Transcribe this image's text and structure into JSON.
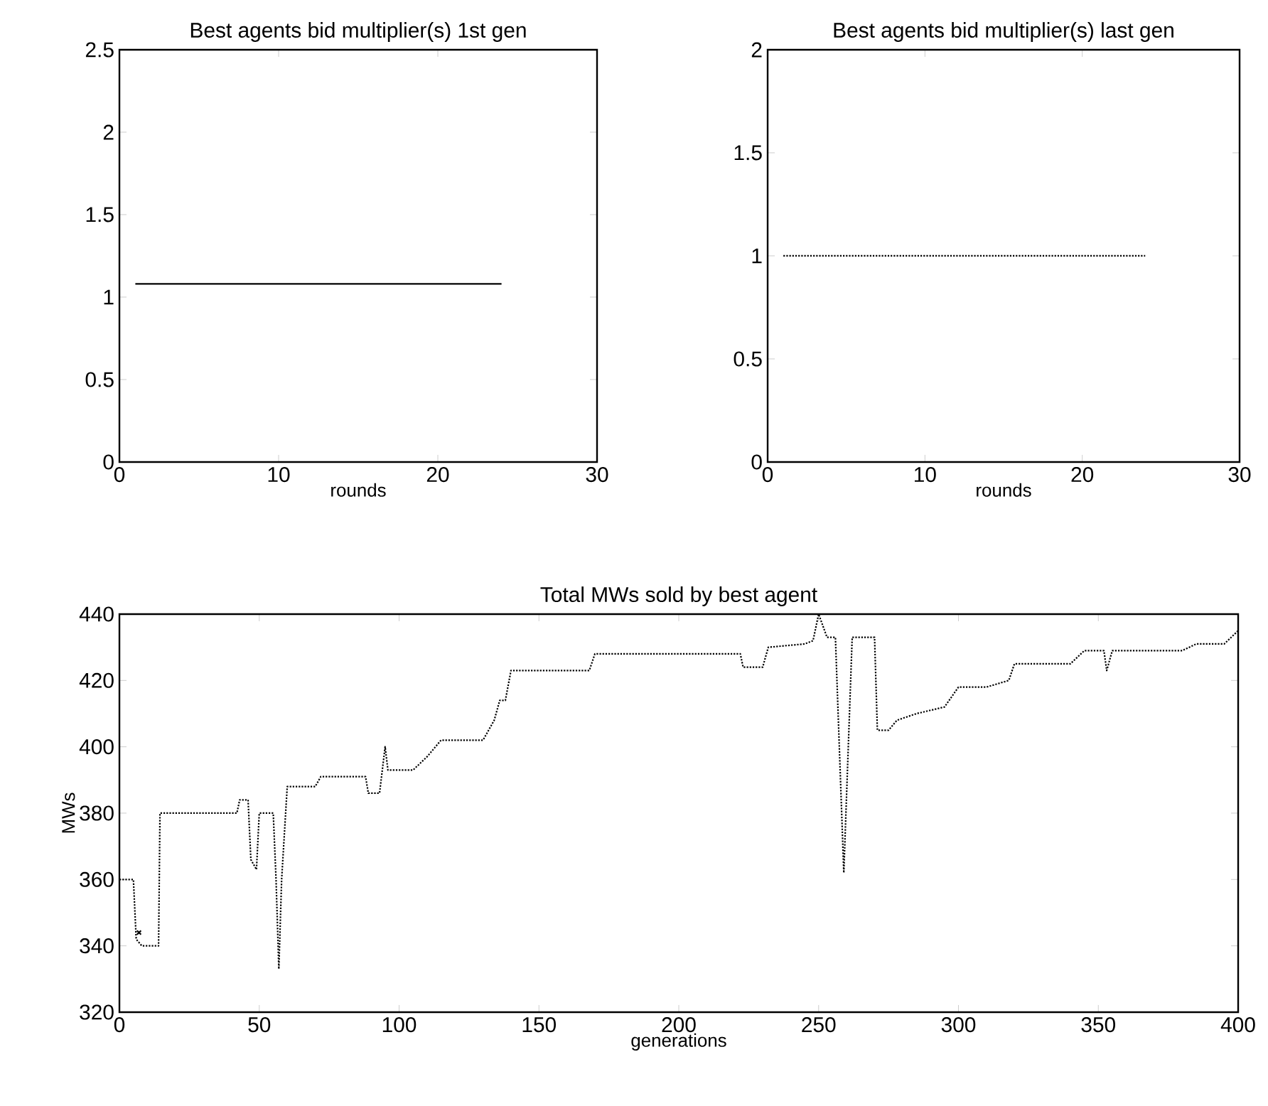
{
  "chart_data": [
    {
      "type": "line",
      "title": "Best agents bid multiplier(s) 1st gen",
      "xlabel": "rounds",
      "xlim": [
        0,
        30
      ],
      "ylim": [
        0,
        2.5
      ],
      "xticks": [
        0,
        10,
        20,
        30
      ],
      "yticks": [
        0,
        0.5,
        1,
        1.5,
        2,
        2.5
      ],
      "grid": false,
      "marker": "none",
      "line_style": "solid",
      "series": [
        {
          "color": "#000000",
          "x": [
            1,
            24
          ],
          "values": [
            1.08,
            1.08
          ]
        }
      ]
    },
    {
      "type": "line",
      "title": "Best agents bid multiplier(s) last gen",
      "xlabel": "rounds",
      "xlim": [
        0,
        30
      ],
      "ylim": [
        0,
        2
      ],
      "xticks": [
        0,
        10,
        20,
        30
      ],
      "yticks": [
        0,
        0.5,
        1,
        1.5,
        2
      ],
      "grid": false,
      "marker": "none",
      "line_style": "dotted",
      "series": [
        {
          "color": "#000000",
          "x": [
            1,
            24
          ],
          "values": [
            1.0,
            1.0
          ]
        }
      ]
    },
    {
      "type": "line",
      "title": "Total MWs sold by best agent",
      "xlabel": "generations",
      "ylabel": "MWs",
      "xlim": [
        0,
        400
      ],
      "ylim": [
        320,
        440
      ],
      "xticks": [
        0,
        50,
        100,
        150,
        200,
        250,
        300,
        350,
        400
      ],
      "yticks": [
        320,
        340,
        360,
        380,
        400,
        420,
        440
      ],
      "grid": false,
      "marker": "none",
      "line_style": "dotted",
      "series": [
        {
          "color": "#000000",
          "x": [
            0,
            5,
            6,
            8,
            14,
            14.5,
            42,
            43,
            46,
            47,
            49,
            50,
            55,
            56,
            57,
            58,
            60,
            70,
            72,
            88,
            89,
            93,
            95,
            96,
            105,
            110,
            115,
            130,
            134,
            136,
            138,
            140,
            168,
            170,
            222,
            223,
            230,
            232,
            245,
            248,
            250,
            253,
            256,
            259,
            262,
            270,
            271,
            275,
            278,
            285,
            295,
            300,
            310,
            318,
            320,
            340,
            345,
            352,
            353,
            355,
            380,
            385,
            395,
            400
          ],
          "values": [
            360,
            360,
            342,
            340,
            340,
            380,
            380,
            384,
            384,
            366,
            363,
            380,
            380,
            360,
            333,
            360,
            388,
            388,
            391,
            391,
            386,
            386,
            400,
            393,
            393,
            397,
            402,
            402,
            408,
            414,
            414,
            423,
            423,
            428,
            428,
            424,
            424,
            430,
            431,
            432,
            440,
            433,
            433,
            362,
            433,
            433,
            405,
            405,
            408,
            410,
            412,
            418,
            418,
            420,
            425,
            425,
            429,
            429,
            423,
            429,
            429,
            431,
            431,
            435
          ]
        },
        {
          "type": "scatter",
          "color": "#000000",
          "marker": "cross",
          "x": [
            7
          ],
          "values": [
            344
          ]
        }
      ]
    }
  ]
}
